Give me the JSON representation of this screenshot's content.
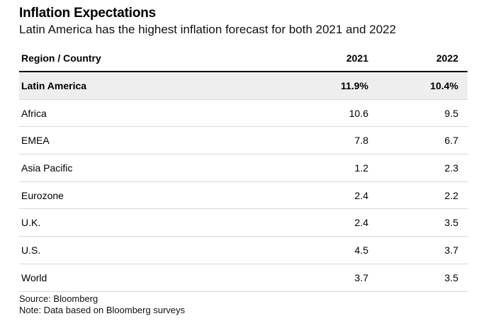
{
  "title": "Inflation Expectations",
  "subtitle": "Latin America has the highest inflation forecast for both 2021 and 2022",
  "chart_data": {
    "type": "table",
    "title": "Inflation Expectations",
    "subtitle": "Latin America has the highest inflation forecast for both 2021 and 2022",
    "columns": [
      "Region / Country",
      "2021",
      "2022"
    ],
    "highlight_color": "#eeeeee",
    "rows": [
      {
        "name": "Latin America",
        "y2021": "11.9%",
        "y2022": "10.4%",
        "highlight": true
      },
      {
        "name": "Africa",
        "y2021": "10.6",
        "y2022": "9.5"
      },
      {
        "name": "EMEA",
        "y2021": "7.8",
        "y2022": "6.7"
      },
      {
        "name": "Asia Pacific",
        "y2021": "1.2",
        "y2022": "2.3"
      },
      {
        "name": "Eurozone",
        "y2021": "2.4",
        "y2022": "2.2"
      },
      {
        "name": "U.K.",
        "y2021": "2.4",
        "y2022": "3.5"
      },
      {
        "name": "U.S.",
        "y2021": "4.5",
        "y2022": "3.7"
      },
      {
        "name": "World",
        "y2021": "3.7",
        "y2022": "3.5"
      }
    ]
  },
  "footer": {
    "source": "Source: Bloomberg",
    "note": "Note: Data based on Bloomberg surveys"
  }
}
